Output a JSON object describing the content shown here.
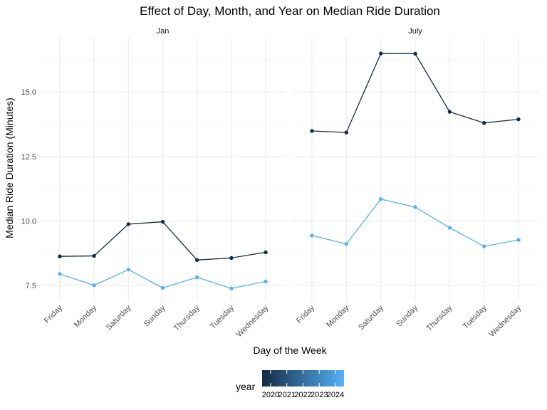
{
  "chart_data": {
    "type": "line",
    "title": "Effect of Day, Month, and Year on Median Ride Duration",
    "xlabel": "Day of the Week",
    "ylabel": "Median Ride Duration (Minutes)",
    "categories": [
      "Friday",
      "Monday",
      "Saturday",
      "Sunday",
      "Thursday",
      "Tuesday",
      "Wednesday"
    ],
    "yticks": [
      "7.5",
      "10.0",
      "12.5",
      "15.0"
    ],
    "ylim": [
      6.9,
      17.1
    ],
    "grid": true,
    "colors": {
      "year2020": "#132b43",
      "year2024": "#56b1f7"
    },
    "legend": {
      "title": "year",
      "position": "bottom",
      "type": "colorbar",
      "ticks": [
        "2020",
        "2021",
        "2022",
        "2023",
        "2024"
      ]
    },
    "facets": [
      {
        "label": "Jan",
        "series": [
          {
            "name": "2020",
            "values": [
              8.63,
              8.65,
              9.88,
              9.97,
              8.49,
              8.57,
              8.79
            ]
          },
          {
            "name": "2024",
            "values": [
              7.95,
              7.51,
              8.12,
              7.41,
              7.82,
              7.39,
              7.66
            ]
          }
        ]
      },
      {
        "label": "July",
        "series": [
          {
            "name": "2020",
            "values": [
              13.49,
              13.43,
              16.49,
              16.48,
              14.23,
              13.8,
              13.94
            ]
          },
          {
            "name": "2024",
            "values": [
              9.44,
              9.11,
              10.85,
              10.54,
              9.74,
              9.02,
              9.27
            ]
          }
        ]
      }
    ]
  }
}
